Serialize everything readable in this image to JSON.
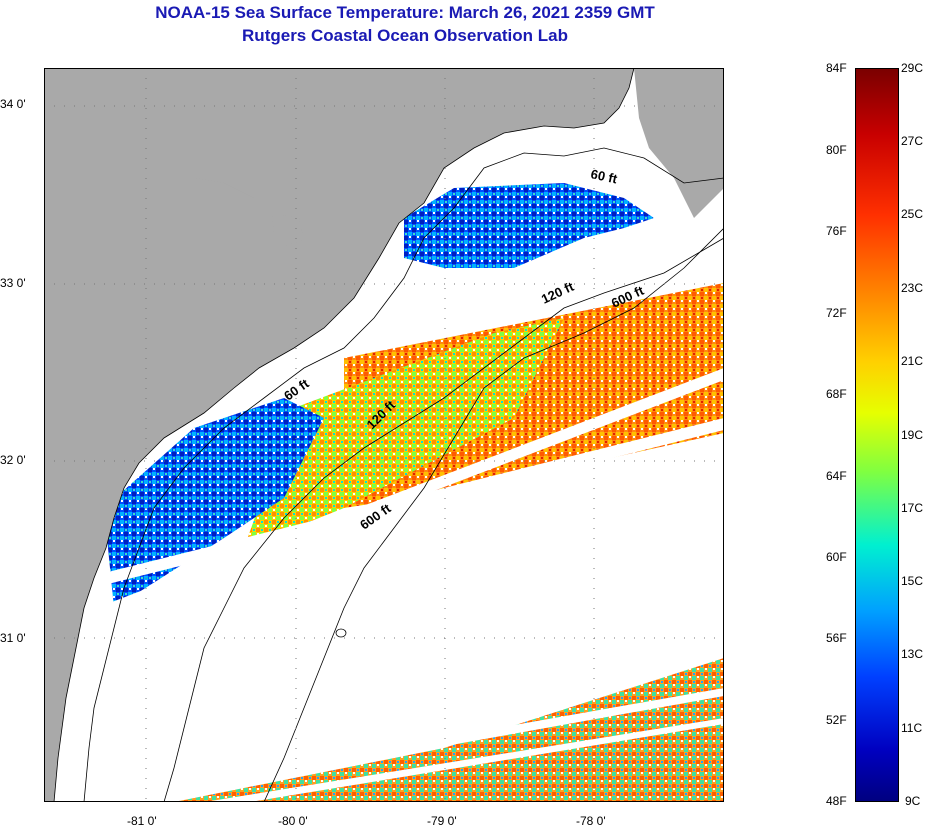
{
  "title": "NOAA-15 Sea Surface Temperature:  March 26, 2021 2359 GMT",
  "subtitle": "Rutgers Coastal Ocean Observation Lab",
  "map": {
    "lat_ticks": [
      "34 0'",
      "33 0'",
      "32 0'",
      "31 0'"
    ],
    "lon_ticks": [
      "-81 0'",
      "-80 0'",
      "-79 0'",
      "-78 0'"
    ],
    "contours": [
      {
        "label": "60 ft"
      },
      {
        "label": "120 ft"
      },
      {
        "label": "600 ft"
      },
      {
        "label": "60 ft"
      },
      {
        "label": "120 ft"
      },
      {
        "label": "600 ft"
      }
    ],
    "colors": {
      "land": "#a9a9a9",
      "ocean_nodata": "#ffffff",
      "grid": "#777777"
    }
  },
  "colorbar": {
    "f_labels": [
      "84F",
      "80F",
      "76F",
      "72F",
      "68F",
      "64F",
      "60F",
      "56F",
      "52F",
      "48F"
    ],
    "c_labels": [
      "29C",
      "27C",
      "25C",
      "23C",
      "21C",
      "19C",
      "17C",
      "15C",
      "13C",
      "11C",
      "9C"
    ],
    "stops": [
      "#7a0000",
      "#c80000",
      "#ff3000",
      "#ff8000",
      "#ffd000",
      "#e6ff00",
      "#80ff40",
      "#00f0d0",
      "#00a0ff",
      "#0040ff",
      "#0000c0",
      "#000080"
    ]
  }
}
